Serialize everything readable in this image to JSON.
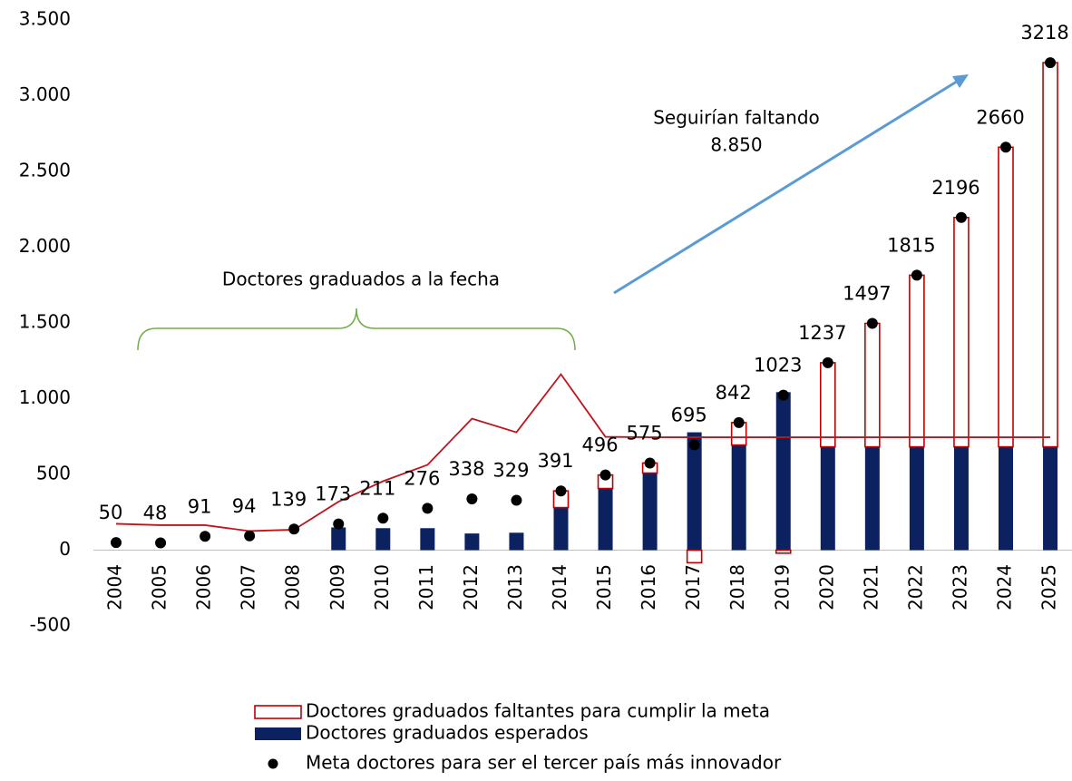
{
  "chart_data": {
    "type": "bar",
    "categories": [
      "2004",
      "2005",
      "2006",
      "2007",
      "2008",
      "2009",
      "2010",
      "2011",
      "2012",
      "2013",
      "2014",
      "2015",
      "2016",
      "2017",
      "2018",
      "2019",
      "2020",
      "2021",
      "2022",
      "2023",
      "2024",
      "2025"
    ],
    "series": [
      {
        "name": "Doctores graduados faltantes para cumplir la meta",
        "color": "#c00000",
        "style": "outline",
        "values": [
          null,
          null,
          null,
          null,
          null,
          null,
          null,
          null,
          null,
          null,
          110,
          89,
          66,
          -83,
          148,
          -20,
          555,
          815,
          1133,
          1514,
          1978,
          2536
        ]
      },
      {
        "name": "Doctores graduados esperados",
        "color": "#0b2160",
        "style": "bar",
        "values": [
          null,
          null,
          null,
          null,
          null,
          150,
          145,
          145,
          110,
          115,
          281,
          407,
          509,
          778,
          694,
          1043,
          682,
          682,
          682,
          682,
          682,
          682
        ]
      },
      {
        "name": "Meta doctores para ser el tercer país más innovador",
        "color": "#000000",
        "style": "dot",
        "values": [
          50,
          48,
          91,
          94,
          139,
          173,
          211,
          276,
          338,
          329,
          391,
          496,
          575,
          695,
          842,
          1023,
          1237,
          1497,
          1815,
          2196,
          2660,
          3218
        ]
      },
      {
        "color": "#c0141c",
        "style": "line",
        "values": [
          174,
          165,
          165,
          126,
          135,
          320,
          455,
          563,
          868,
          778,
          1161,
          748,
          745,
          745,
          745,
          745,
          745,
          745,
          745,
          745,
          745,
          745
        ]
      }
    ],
    "ylim": [
      -500,
      3500
    ],
    "yticks": [
      -500,
      0,
      500,
      {
        "value": 1000,
        "label": "1.000"
      },
      {
        "value": 1500,
        "label": "1.500"
      },
      {
        "value": 2000,
        "label": "2.000"
      },
      {
        "value": 2500,
        "label": "2.500"
      },
      {
        "value": 3000,
        "label": "3.000"
      },
      {
        "value": 3500,
        "label": "3.500"
      }
    ],
    "annotations": [
      "Doctores graduados a la fecha",
      "Seguirían faltando",
      "8.850"
    ]
  }
}
